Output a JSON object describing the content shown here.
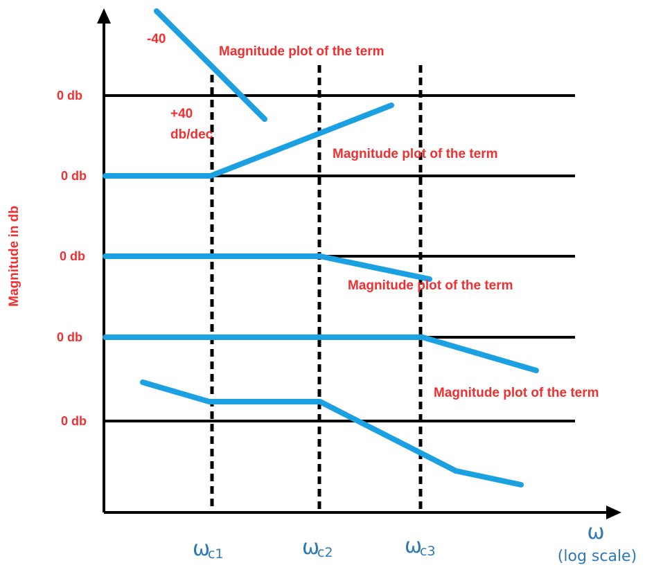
{
  "axes": {
    "y_label": "Magnitude in db",
    "x_symbol": "ω",
    "x_note": "(log scale)"
  },
  "corner_frequencies": [
    {
      "symbol": "ω",
      "sub": "c1"
    },
    {
      "symbol": "ω",
      "sub": "c2"
    },
    {
      "symbol": "ω",
      "sub": "c3"
    }
  ],
  "db_labels": [
    "0 db",
    "0 db",
    "0 db",
    "0 db",
    "0 db"
  ],
  "annotations": {
    "minus_40": "-40",
    "plus_40_a": "+40",
    "plus_40_b": "db/dec"
  },
  "term_labels": [
    "Magnitude plot of the term",
    "Magnitude plot of the term",
    "Magnitude plot of the term",
    "Magnitude plot of the term"
  ],
  "colors": {
    "curve": "#1ba1e2",
    "label_red": "#f03030",
    "label_blue": "#2f78b8",
    "axis": "#000000"
  }
}
